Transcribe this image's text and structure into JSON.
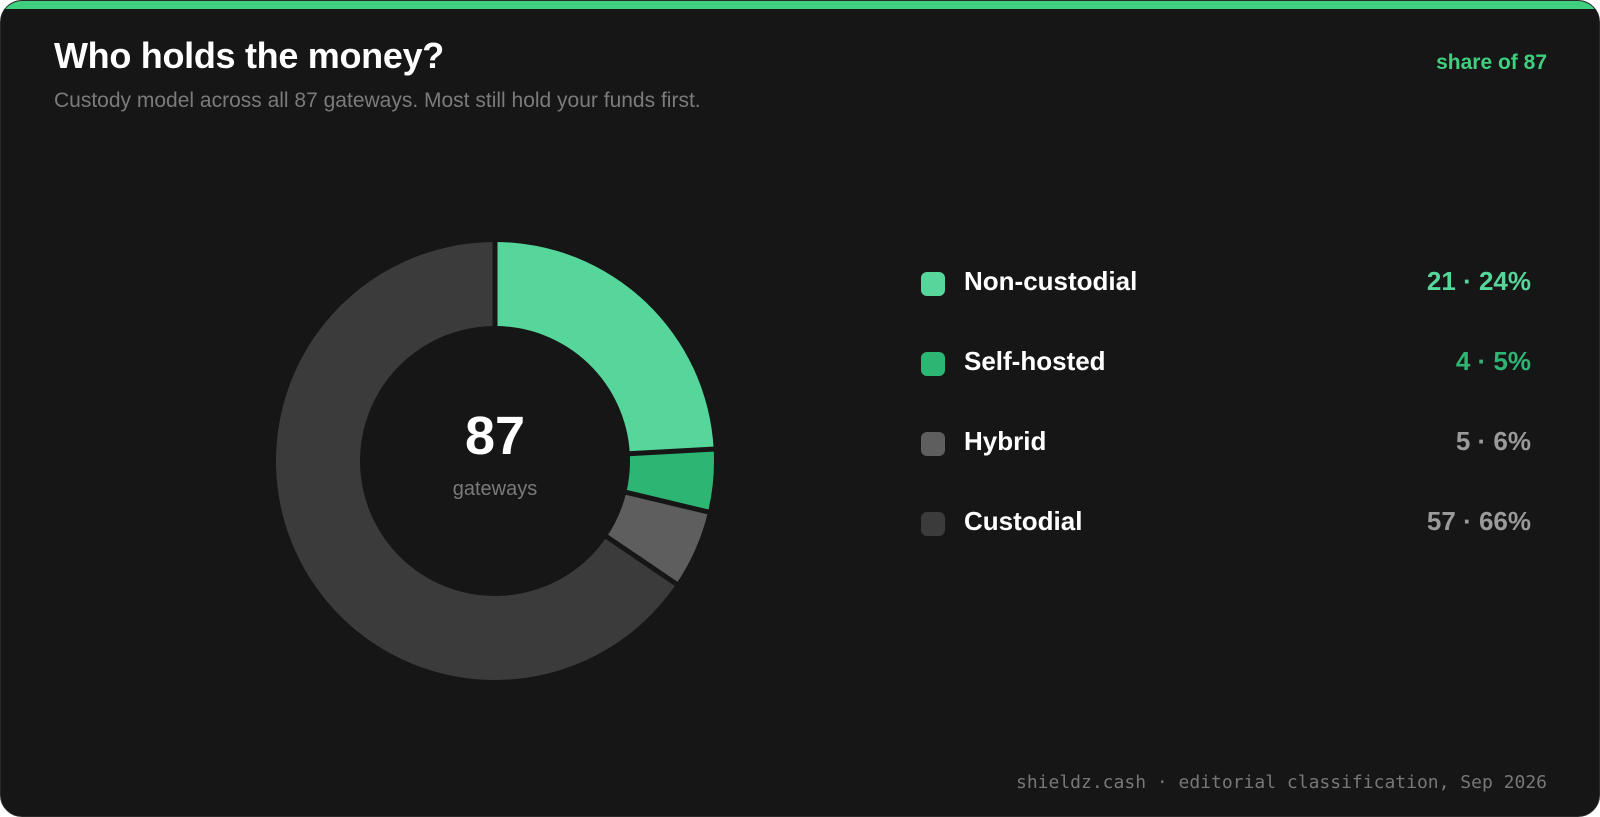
{
  "header": {
    "title": "Who holds the money?",
    "subtitle": "Custody model across all 87 gateways. Most still hold your funds first.",
    "badge": "share of 87"
  },
  "center": {
    "value": "87",
    "label": "gateways"
  },
  "footer": {
    "source": "shieldz.cash · editorial classification, Sep 2026"
  },
  "colors": {
    "accent": "#3ecf7f",
    "background": "#161616"
  },
  "chart_data": {
    "type": "pie",
    "total": 87,
    "series": [
      {
        "name": "Non-custodial",
        "count": 21,
        "value": 24,
        "display": "21 · 24%",
        "color": "#56d69b",
        "value_color": "#56d69b"
      },
      {
        "name": "Self-hosted",
        "count": 4,
        "value": 5,
        "display": "4 · 5%",
        "color": "#2db573",
        "value_color": "#2db573"
      },
      {
        "name": "Hybrid",
        "count": 5,
        "value": 6,
        "display": "5 · 6%",
        "color": "#5e5e5e",
        "value_color": "#9a9a9a"
      },
      {
        "name": "Custodial",
        "count": 57,
        "value": 66,
        "display": "57 · 66%",
        "color": "#3b3b3b",
        "value_color": "#9a9a9a"
      }
    ],
    "legend": "right"
  }
}
